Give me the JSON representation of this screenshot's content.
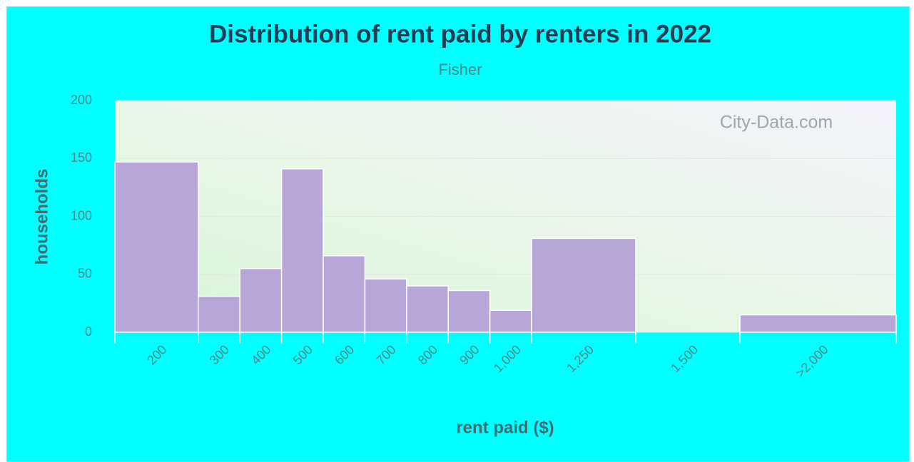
{
  "chart_data": {
    "type": "bar",
    "title": "Distribution of rent paid by renters in 2022",
    "subtitle": "Fisher",
    "x_label": "rent paid ($)",
    "y_label": "households",
    "watermark": "City-Data.com",
    "categories": [
      "200",
      "300",
      "400",
      "500",
      "600",
      "700",
      "800",
      "900",
      "1,000",
      "1,250",
      "1,500",
      ">2,000"
    ],
    "values": [
      147,
      31,
      55,
      141,
      66,
      46,
      40,
      36,
      19,
      81,
      0,
      15
    ],
    "color": "#b9a6d9",
    "ylim": [
      0,
      200
    ],
    "yticks": [
      0,
      50,
      100,
      150,
      200
    ],
    "grid": true
  }
}
